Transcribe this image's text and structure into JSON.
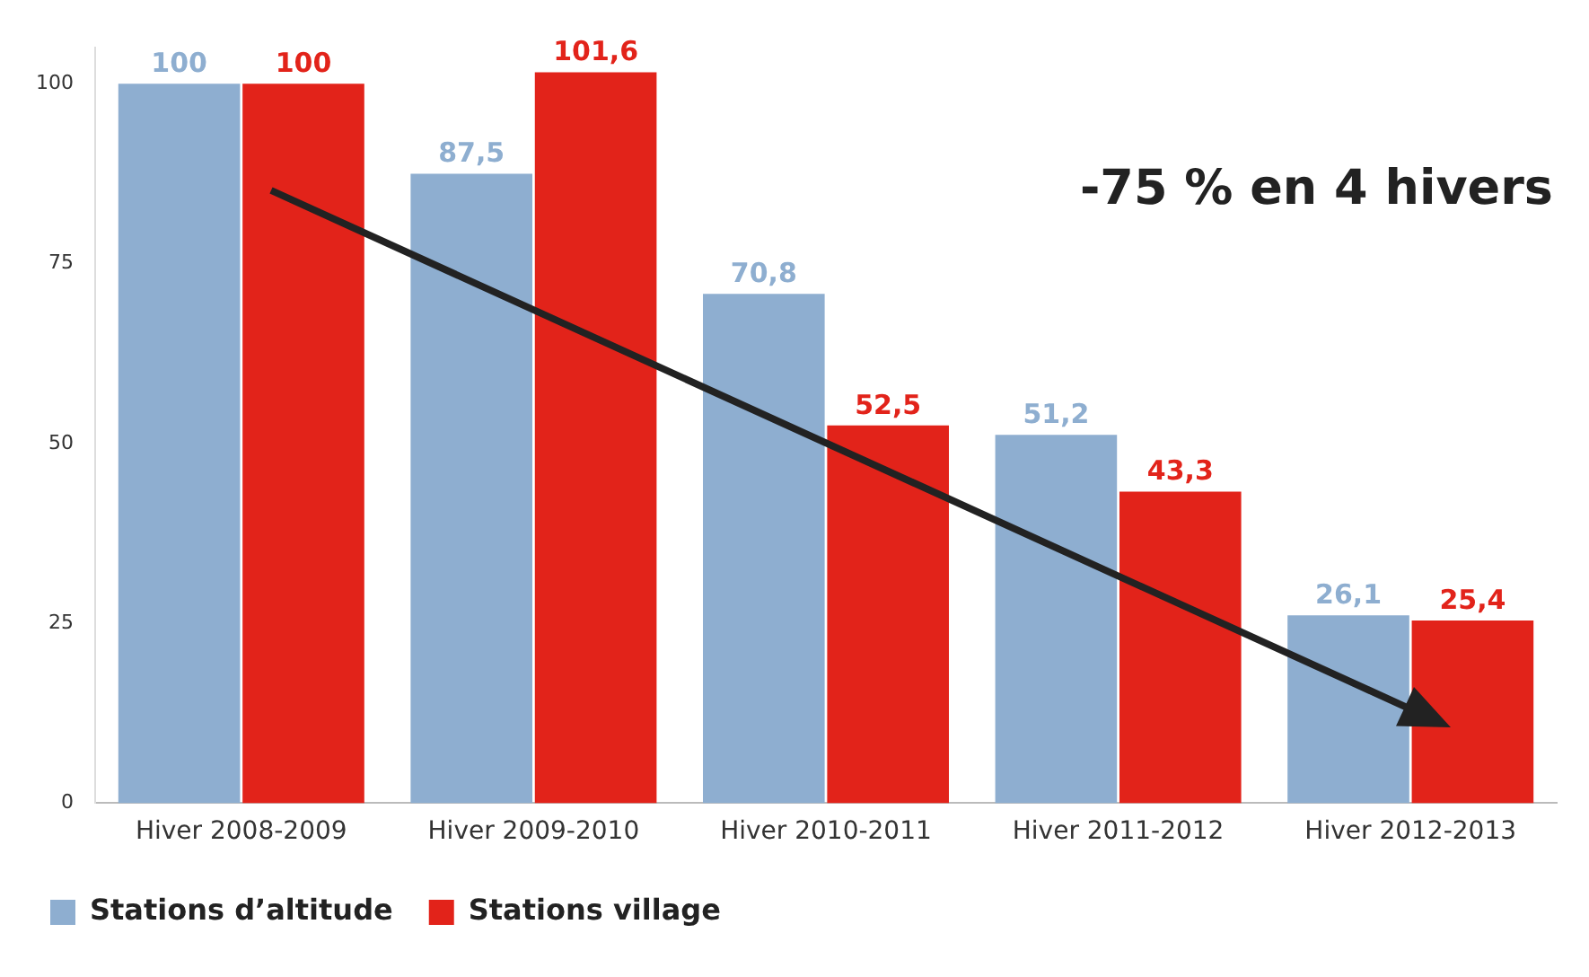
{
  "chart_data": {
    "type": "bar",
    "categories": [
      "Hiver 2008-2009",
      "Hiver 2009-2010",
      "Hiver 2010-2011",
      "Hiver 2011-2012",
      "Hiver 2012-2013"
    ],
    "series": [
      {
        "name": "Stations d’altitude",
        "color": "#8eaed0",
        "values": [
          100,
          87.5,
          70.8,
          51.2,
          26.1
        ],
        "value_labels": [
          "100",
          "87,5",
          "70,8",
          "51,2",
          "26,1"
        ]
      },
      {
        "name": "Stations village",
        "color": "#e2231a",
        "values": [
          100,
          101.6,
          52.5,
          43.3,
          25.4
        ],
        "value_labels": [
          "100",
          "101,6",
          "52,5",
          "43,3",
          "25,4"
        ]
      }
    ],
    "ylim": [
      0,
      105
    ],
    "yticks": [
      0,
      25,
      50,
      75,
      100
    ],
    "grid": false,
    "legend": "bottom left",
    "annotations": [
      "-75 % en 4 hivers"
    ]
  }
}
